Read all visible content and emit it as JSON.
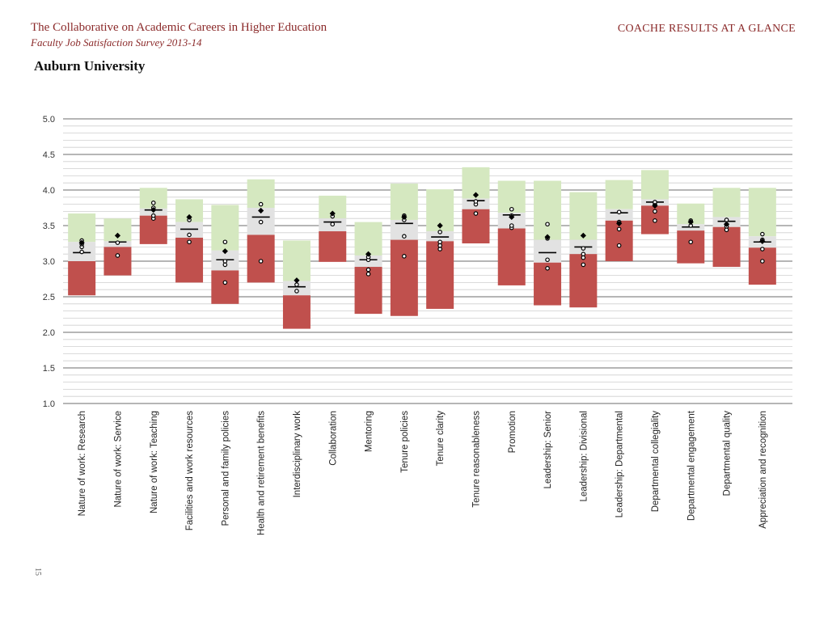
{
  "header": {
    "title": "The Collaborative on Academic Careers in Higher Education",
    "subtitle": "Faculty Job Satisfaction Survey 2013-14",
    "right_title": "COACHE RESULTS AT A GLANCE",
    "institution": "Auburn University"
  },
  "page_number": "15",
  "colors": {
    "upper_band": "#d5e8c0",
    "middle_band": "#e2e2e2",
    "lower_band": "#c0504d",
    "marker": "#000000"
  },
  "chart_data": {
    "type": "range_bar",
    "title": "",
    "xlabel": "",
    "ylabel": "",
    "ylim": [
      1.0,
      5.0
    ],
    "yticks": [
      "1.0",
      "1.5",
      "2.0",
      "2.5",
      "3.0",
      "3.5",
      "4.0",
      "4.5",
      "5.0"
    ],
    "grid": true,
    "categories": [
      {
        "label": "Nature of work: Research",
        "low": 2.52,
        "q1": 3.0,
        "q3": 3.27,
        "high": 3.67,
        "mean": 3.12,
        "diamond": 3.26,
        "dots": [
          3.13,
          3.2,
          3.24,
          3.29
        ]
      },
      {
        "label": "Nature of work: Service",
        "low": 2.8,
        "q1": 3.2,
        "q3": 3.28,
        "high": 3.6,
        "mean": 3.27,
        "diamond": 3.36,
        "dots": [
          3.08,
          3.26
        ]
      },
      {
        "label": "Nature of work: Teaching",
        "low": 3.24,
        "q1": 3.64,
        "q3": 3.74,
        "high": 4.03,
        "mean": 3.72,
        "diamond": 3.72,
        "dots": [
          3.6,
          3.64,
          3.75,
          3.82
        ]
      },
      {
        "label": "Facilities and work resources",
        "low": 2.7,
        "q1": 3.33,
        "q3": 3.55,
        "high": 3.87,
        "mean": 3.45,
        "diamond": 3.62,
        "dots": [
          3.27,
          3.37,
          3.58
        ]
      },
      {
        "label": "Personal and family policies",
        "low": 2.4,
        "q1": 2.87,
        "q3": 3.15,
        "high": 3.79,
        "mean": 3.02,
        "diamond": 3.14,
        "dots": [
          2.7,
          2.95,
          3.0,
          3.27
        ]
      },
      {
        "label": "Health and retirement benefits",
        "low": 2.7,
        "q1": 3.37,
        "q3": 3.75,
        "high": 4.15,
        "mean": 3.62,
        "diamond": 3.71,
        "dots": [
          3.0,
          3.55,
          3.8
        ]
      },
      {
        "label": "Interdisciplinary work",
        "low": 2.05,
        "q1": 2.52,
        "q3": 2.72,
        "high": 3.29,
        "mean": 2.64,
        "diamond": 2.73,
        "dots": [
          2.58,
          2.67
        ]
      },
      {
        "label": "Collaboration",
        "low": 2.99,
        "q1": 3.42,
        "q3": 3.6,
        "high": 3.92,
        "mean": 3.55,
        "diamond": 3.67,
        "dots": [
          3.52,
          3.63
        ]
      },
      {
        "label": "Mentoring",
        "low": 2.26,
        "q1": 2.92,
        "q3": 3.08,
        "high": 3.55,
        "mean": 3.02,
        "diamond": 3.1,
        "dots": [
          2.82,
          2.88,
          3.02,
          3.06
        ]
      },
      {
        "label": "Tenure policies",
        "low": 2.23,
        "q1": 3.3,
        "q3": 3.58,
        "high": 4.09,
        "mean": 3.53,
        "diamond": 3.62,
        "dots": [
          3.07,
          3.35,
          3.58,
          3.64
        ]
      },
      {
        "label": "Tenure clarity",
        "low": 2.33,
        "q1": 3.28,
        "q3": 3.42,
        "high": 4.01,
        "mean": 3.34,
        "diamond": 3.5,
        "dots": [
          3.17,
          3.22,
          3.27,
          3.41
        ]
      },
      {
        "label": "Tenure reasonableness",
        "low": 3.25,
        "q1": 3.73,
        "q3": 3.88,
        "high": 4.32,
        "mean": 3.85,
        "diamond": 3.93,
        "dots": [
          3.67,
          3.8,
          3.84
        ]
      },
      {
        "label": "Promotion",
        "low": 2.66,
        "q1": 3.46,
        "q3": 3.68,
        "high": 4.13,
        "mean": 3.65,
        "diamond": 3.62,
        "dots": [
          3.47,
          3.5,
          3.64,
          3.73
        ]
      },
      {
        "label": "Leadership: Senior",
        "low": 2.38,
        "q1": 2.98,
        "q3": 3.3,
        "high": 4.13,
        "mean": 3.12,
        "diamond": 3.34,
        "dots": [
          2.9,
          3.02,
          3.32,
          3.52
        ]
      },
      {
        "label": "Leadership: Divisional",
        "low": 2.35,
        "q1": 3.1,
        "q3": 3.3,
        "high": 3.97,
        "mean": 3.2,
        "diamond": 3.36,
        "dots": [
          2.95,
          3.05,
          3.1,
          3.18
        ]
      },
      {
        "label": "Leadership: Departmental",
        "low": 3.0,
        "q1": 3.57,
        "q3": 3.73,
        "high": 4.14,
        "mean": 3.68,
        "diamond": 3.53,
        "dots": [
          3.22,
          3.45,
          3.55,
          3.69
        ]
      },
      {
        "label": "Departmental collegiality",
        "low": 3.38,
        "q1": 3.78,
        "q3": 3.87,
        "high": 4.28,
        "mean": 3.83,
        "diamond": 3.78,
        "dots": [
          3.57,
          3.7,
          3.8,
          3.83
        ]
      },
      {
        "label": "Departmental engagement",
        "low": 2.97,
        "q1": 3.43,
        "q3": 3.52,
        "high": 3.81,
        "mean": 3.48,
        "diamond": 3.55,
        "dots": [
          3.27,
          3.5,
          3.57
        ]
      },
      {
        "label": "Departmental quality",
        "low": 2.92,
        "q1": 3.48,
        "q3": 3.62,
        "high": 4.03,
        "mean": 3.56,
        "diamond": 3.52,
        "dots": [
          3.44,
          3.49,
          3.58
        ]
      },
      {
        "label": "Appreciation and recognition",
        "low": 2.67,
        "q1": 3.19,
        "q3": 3.35,
        "high": 4.03,
        "mean": 3.27,
        "diamond": 3.28,
        "dots": [
          3.0,
          3.17,
          3.3,
          3.38
        ]
      }
    ]
  }
}
